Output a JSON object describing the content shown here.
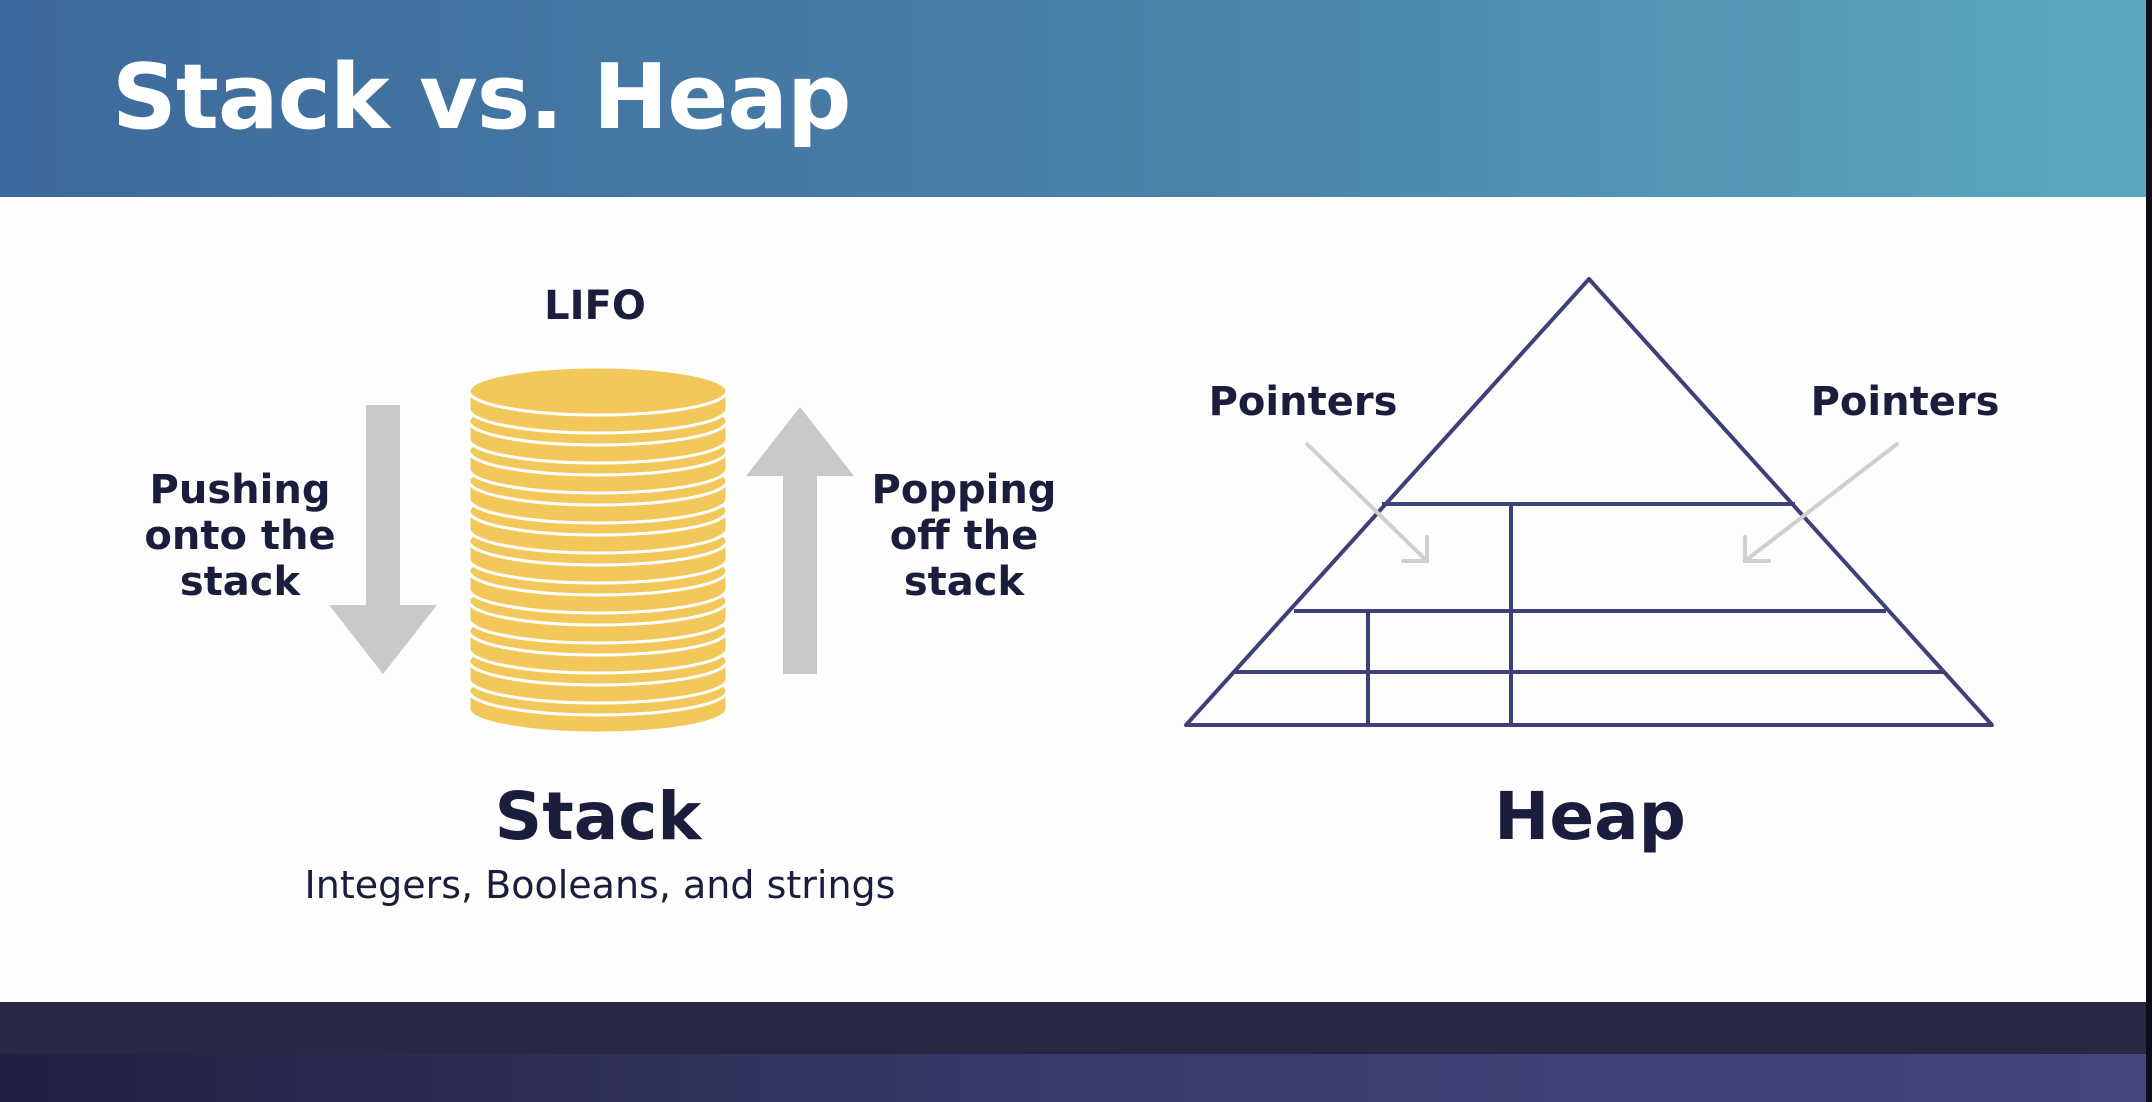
{
  "slide": {
    "title": "Stack vs. Heap"
  },
  "stack_side": {
    "lifo_label": "LIFO",
    "push_label": "Pushing\nonto the\nstack",
    "pop_label": "Popping\noff the\nstack",
    "heading": "Stack",
    "subtitle": "Integers, Booleans, and strings"
  },
  "heap_side": {
    "pointers_left": "Pointers",
    "pointers_right": "Pointers",
    "heading": "Heap"
  },
  "colors": {
    "header_start": "#3d6a9c",
    "header_end": "#5aa9c0",
    "coin": "#f2c85b",
    "arrow": "#c9c9c9",
    "pyramid_line": "#3f4079",
    "text": "#1b1d3d",
    "footer": "#262844"
  },
  "icons": {
    "coin_stack": "coin-stack-icon",
    "down_arrow": "down-arrow-icon",
    "up_arrow": "up-arrow-icon",
    "pyramid": "pyramid-icon"
  }
}
